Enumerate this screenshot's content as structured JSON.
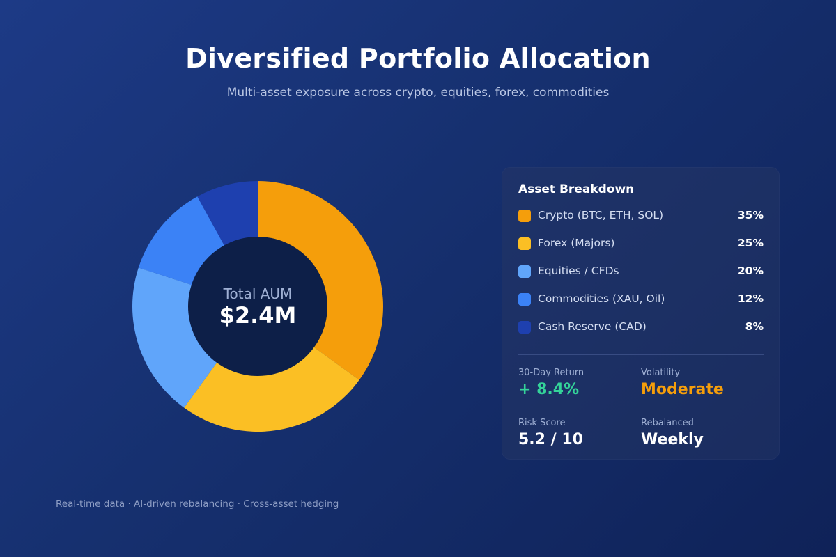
{
  "header": {
    "title": "Diversified Portfolio Allocation",
    "subtitle": "Multi-asset exposure across crypto, equities, forex, commodities"
  },
  "chart_data": {
    "type": "pie",
    "title": "Diversified Portfolio Allocation",
    "subtitle": "Multi-asset exposure across crypto, equities, forex, commodities",
    "donut": true,
    "center_label": "Total AUM",
    "center_value": "$2.4M",
    "categories": [
      "Crypto (BTC, ETH, SOL)",
      "Forex (Majors)",
      "Equities / CFDs",
      "Commodities (XAU, Oil)",
      "Cash Reserve (CAD)"
    ],
    "values": [
      35,
      25,
      20,
      12,
      8
    ],
    "unit": "%",
    "colors": [
      "#f59e0b",
      "#fbbf24",
      "#60a5fa",
      "#3b82f6",
      "#1e40af"
    ],
    "legend_placement": "right"
  },
  "panel": {
    "title": "Asset Breakdown",
    "items": [
      {
        "label": "Crypto (BTC, ETH, SOL)",
        "pct": "35%",
        "color": "#f59e0b"
      },
      {
        "label": "Forex (Majors)",
        "pct": "25%",
        "color": "#fbbf24"
      },
      {
        "label": "Equities / CFDs",
        "pct": "20%",
        "color": "#60a5fa"
      },
      {
        "label": "Commodities (XAU, Oil)",
        "pct": "12%",
        "color": "#3b82f6"
      },
      {
        "label": "Cash Reserve (CAD)",
        "pct": "8%",
        "color": "#1e40af"
      }
    ],
    "stats": {
      "return_label": "30-Day Return",
      "return_value": "+ 8.4%",
      "return_color": "#34d399",
      "volatility_label": "Volatility",
      "volatility_value": "Moderate",
      "volatility_color": "#f59e0b",
      "risk_label": "Risk Score",
      "risk_value": "5.2 / 10",
      "rebalanced_label": "Rebalanced",
      "rebalanced_value": "Weekly"
    }
  },
  "footer": {
    "text": "Real-time data · AI-driven rebalancing · Cross-asset hedging"
  }
}
